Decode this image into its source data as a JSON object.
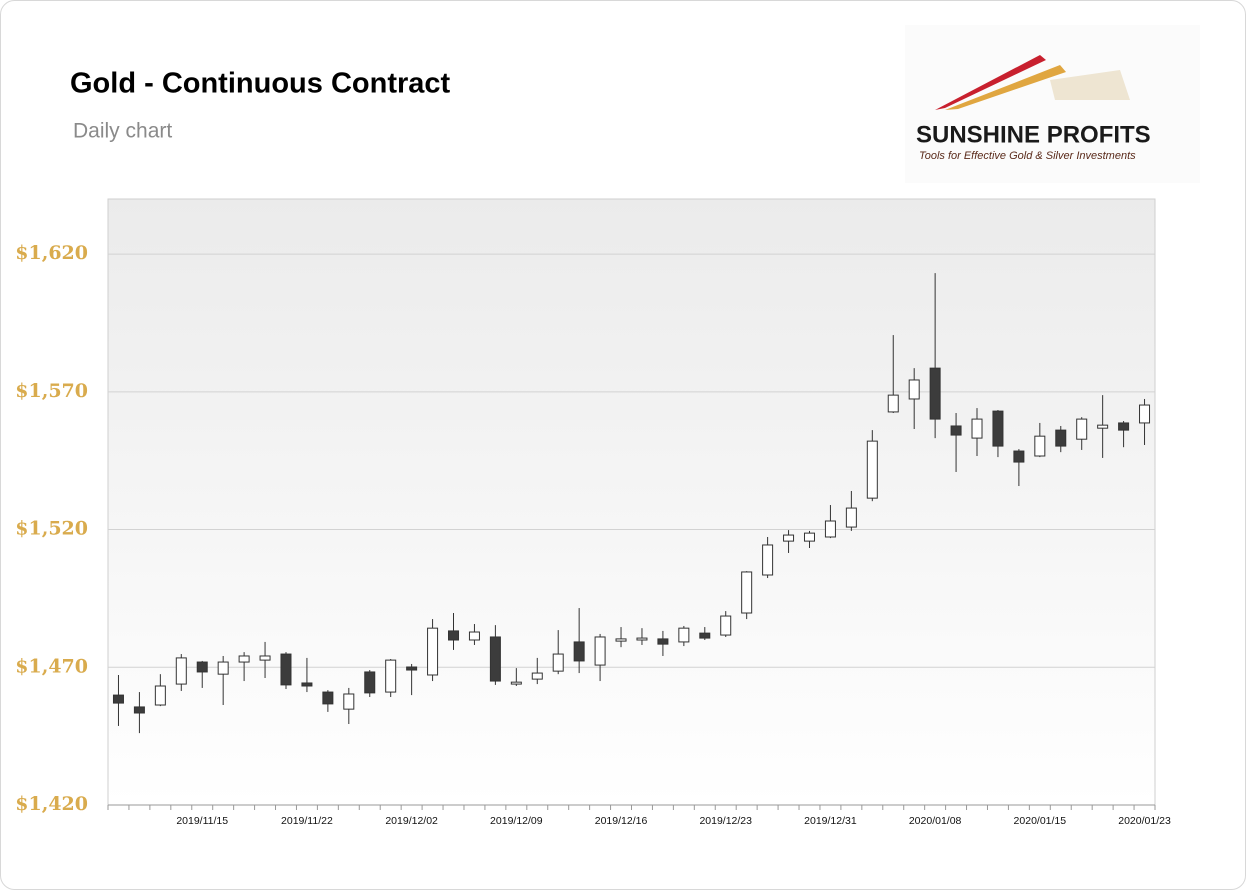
{
  "chart_data": {
    "type": "candlestick",
    "title": "Gold - Continuous Contract",
    "subtitle": "Daily chart",
    "logo": {
      "name": "SUNSHINE PROFITS",
      "tagline": "Tools for Effective Gold & Silver Investments"
    },
    "categories": [
      null,
      null,
      null,
      null,
      "2019/11/15",
      null,
      null,
      null,
      null,
      "2019/11/22",
      null,
      null,
      null,
      null,
      "2019/12/02",
      null,
      null,
      null,
      null,
      "2019/12/09",
      null,
      null,
      null,
      null,
      "2019/12/16",
      null,
      null,
      null,
      null,
      "2019/12/23",
      null,
      null,
      null,
      null,
      "2019/12/31",
      null,
      null,
      null,
      null,
      "2020/01/08",
      null,
      null,
      null,
      null,
      "2020/01/15",
      null,
      null,
      null,
      null,
      "2020/01/23"
    ],
    "open": [
      1459.9,
      1455.6,
      1456.3,
      1463.9,
      1471.9,
      1467.5,
      1471.9,
      1472.6,
      1474.8,
      1464.3,
      1461.0,
      1454.8,
      1468.3,
      1461.0,
      1470.1,
      1467.2,
      1483.2,
      1479.9,
      1481.0,
      1463.9,
      1465.7,
      1468.6,
      1479.2,
      1470.8,
      1479.5,
      1479.9,
      1480.3,
      1479.2,
      1482.4,
      1481.7,
      1489.7,
      1503.5,
      1515.8,
      1515.8,
      1517.3,
      1520.9,
      1531.4,
      1562.7,
      1567.4,
      1578.6,
      1557.6,
      1553.2,
      1563.0,
      1548.5,
      1546.7,
      1556.1,
      1552.8,
      1556.8,
      1558.7,
      1558.7
    ],
    "high": [
      1467.2,
      1461.0,
      1467.5,
      1474.8,
      1472.3,
      1474.1,
      1475.5,
      1479.2,
      1475.5,
      1473.4,
      1461.7,
      1462.5,
      1469.0,
      1473.0,
      1471.2,
      1487.5,
      1489.7,
      1485.7,
      1485.3,
      1469.7,
      1473.4,
      1483.5,
      1491.5,
      1482.1,
      1484.6,
      1484.2,
      1483.2,
      1485.0,
      1484.6,
      1490.4,
      1504.9,
      1517.3,
      1519.8,
      1519.5,
      1528.9,
      1534.0,
      1556.1,
      1590.6,
      1578.6,
      1613.1,
      1562.3,
      1564.1,
      1563.4,
      1549.2,
      1558.7,
      1557.6,
      1560.8,
      1568.8,
      1559.4,
      1567.4
    ],
    "low": [
      1448.7,
      1446.1,
      1455.9,
      1461.4,
      1462.5,
      1456.3,
      1465.0,
      1466.1,
      1462.1,
      1461.0,
      1453.8,
      1449.4,
      1459.2,
      1459.2,
      1459.9,
      1465.0,
      1476.3,
      1478.1,
      1463.6,
      1463.2,
      1463.9,
      1467.5,
      1467.9,
      1465.0,
      1477.3,
      1478.1,
      1474.1,
      1477.7,
      1479.9,
      1481.0,
      1487.5,
      1502.4,
      1511.5,
      1513.3,
      1516.9,
      1519.5,
      1530.3,
      1562.3,
      1556.5,
      1553.2,
      1540.9,
      1546.7,
      1546.3,
      1535.8,
      1546.3,
      1548.1,
      1548.9,
      1546.0,
      1549.9,
      1550.7
    ],
    "close": [
      1457.0,
      1453.4,
      1463.2,
      1473.4,
      1468.3,
      1471.9,
      1474.1,
      1474.1,
      1463.6,
      1463.2,
      1456.7,
      1460.3,
      1460.7,
      1472.6,
      1469.0,
      1484.2,
      1479.9,
      1482.8,
      1465.0,
      1464.6,
      1467.9,
      1474.8,
      1472.3,
      1481.0,
      1480.3,
      1480.6,
      1478.4,
      1484.2,
      1480.6,
      1488.6,
      1504.6,
      1514.4,
      1518.0,
      1518.7,
      1523.1,
      1527.8,
      1552.1,
      1568.8,
      1574.3,
      1560.1,
      1554.3,
      1560.1,
      1550.3,
      1544.5,
      1553.9,
      1550.3,
      1560.1,
      1557.9,
      1556.1,
      1565.2
    ],
    "up_color": "#ffffff",
    "down_color": "#3c3c3c",
    "ylim": [
      1420,
      1640
    ],
    "yticks": [
      {
        "value": 1420,
        "label": "$1,420"
      },
      {
        "value": 1470,
        "label": "$1,470"
      },
      {
        "value": 1520,
        "label": "$1,520"
      },
      {
        "value": 1570,
        "label": "$1,570"
      },
      {
        "value": 1620,
        "label": "$1,620"
      }
    ],
    "grid": true
  }
}
